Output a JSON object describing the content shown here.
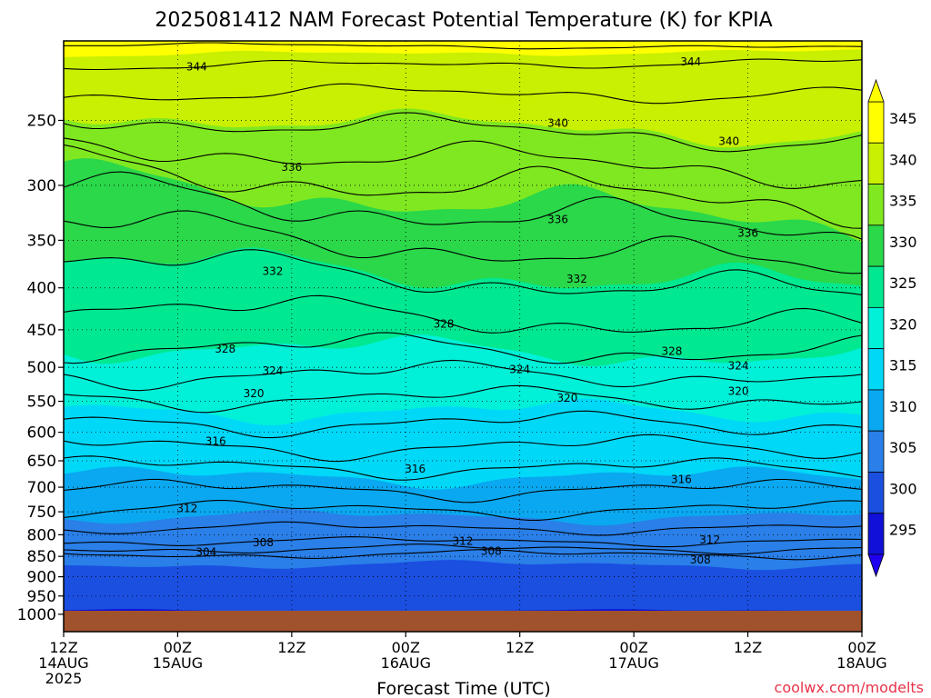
{
  "chart_data": {
    "type": "heatmap",
    "title": "2025081412 NAM Forecast Potential Temperature (K) for KPIA",
    "xlabel": "Forecast Time (UTC)",
    "ylabel": "",
    "credit": "coolwx.com/modelts",
    "y_scale": "log-pressure",
    "ylim": [
      1050,
      200
    ],
    "xlim": [
      0,
      84
    ],
    "grid": true,
    "y_ticks": [
      "250",
      "300",
      "350",
      "400",
      "450",
      "500",
      "550",
      "600",
      "650",
      "700",
      "750",
      "800",
      "850",
      "900",
      "950",
      "1000"
    ],
    "x_ticks": [
      {
        "hour": 0,
        "time": "12Z",
        "date": "14AUG",
        "year": "2025"
      },
      {
        "hour": 12,
        "time": "00Z",
        "date": "15AUG",
        "year": ""
      },
      {
        "hour": 24,
        "time": "12Z",
        "date": "",
        "year": ""
      },
      {
        "hour": 36,
        "time": "00Z",
        "date": "16AUG",
        "year": ""
      },
      {
        "hour": 48,
        "time": "12Z",
        "date": "",
        "year": ""
      },
      {
        "hour": 60,
        "time": "00Z",
        "date": "17AUG",
        "year": ""
      },
      {
        "hour": 72,
        "time": "12Z",
        "date": "",
        "year": ""
      },
      {
        "hour": 84,
        "time": "00Z",
        "date": "18AUG",
        "year": ""
      }
    ],
    "colorbar": {
      "labels": [
        "345",
        "340",
        "335",
        "330",
        "325",
        "320",
        "315",
        "310",
        "305",
        "300",
        "295"
      ],
      "bins": [
        {
          "from": 295,
          "to": 300,
          "color": "#1010d8"
        },
        {
          "from": 300,
          "to": 305,
          "color": "#1a4fe0"
        },
        {
          "from": 305,
          "to": 310,
          "color": "#2a7fe8"
        },
        {
          "from": 310,
          "to": 315,
          "color": "#0aa8f0"
        },
        {
          "from": 315,
          "to": 320,
          "color": "#00d8f8"
        },
        {
          "from": 320,
          "to": 325,
          "color": "#00f0d8"
        },
        {
          "from": 325,
          "to": 330,
          "color": "#00e890"
        },
        {
          "from": 330,
          "to": 335,
          "color": "#2ad84a"
        },
        {
          "from": 335,
          "to": 340,
          "color": "#80e820"
        },
        {
          "from": 340,
          "to": 345,
          "color": "#c8f000"
        },
        {
          "from": 345,
          "to": 350,
          "color": "#ffff00"
        }
      ],
      "below_color": "#2000f0",
      "above_color": "#ffff00"
    },
    "ground_color": "#a0522d",
    "contour_labels": [
      {
        "value": "344",
        "hour": 14,
        "pressure": 215
      },
      {
        "value": "344",
        "hour": 66,
        "pressure": 212
      },
      {
        "value": "340",
        "hour": 52,
        "pressure": 252
      },
      {
        "value": "340",
        "hour": 70,
        "pressure": 265
      },
      {
        "value": "336",
        "hour": 24,
        "pressure": 285
      },
      {
        "value": "336",
        "hour": 52,
        "pressure": 330
      },
      {
        "value": "336",
        "hour": 72,
        "pressure": 343
      },
      {
        "value": "332",
        "hour": 22,
        "pressure": 382
      },
      {
        "value": "332",
        "hour": 54,
        "pressure": 390
      },
      {
        "value": "328",
        "hour": 40,
        "pressure": 443
      },
      {
        "value": "328",
        "hour": 17,
        "pressure": 475
      },
      {
        "value": "328",
        "hour": 64,
        "pressure": 478
      },
      {
        "value": "324",
        "hour": 22,
        "pressure": 505
      },
      {
        "value": "324",
        "hour": 48,
        "pressure": 503
      },
      {
        "value": "324",
        "hour": 71,
        "pressure": 498
      },
      {
        "value": "320",
        "hour": 20,
        "pressure": 538
      },
      {
        "value": "320",
        "hour": 53,
        "pressure": 545
      },
      {
        "value": "320",
        "hour": 71,
        "pressure": 535
      },
      {
        "value": "316",
        "hour": 16,
        "pressure": 615
      },
      {
        "value": "316",
        "hour": 37,
        "pressure": 665
      },
      {
        "value": "316",
        "hour": 65,
        "pressure": 685
      },
      {
        "value": "312",
        "hour": 13,
        "pressure": 743
      },
      {
        "value": "312",
        "hour": 42,
        "pressure": 815
      },
      {
        "value": "312",
        "hour": 68,
        "pressure": 812
      },
      {
        "value": "308",
        "hour": 21,
        "pressure": 818
      },
      {
        "value": "308",
        "hour": 45,
        "pressure": 838
      },
      {
        "value": "308",
        "hour": 67,
        "pressure": 858
      },
      {
        "value": "304",
        "hour": 15,
        "pressure": 840
      }
    ],
    "isentropes": [
      {
        "value": 346,
        "p_start": 202,
        "p_end": 204,
        "amp": 3
      },
      {
        "value": 344,
        "p_start": 215,
        "p_end": 212,
        "amp": 6
      },
      {
        "value": 342,
        "p_start": 232,
        "p_end": 232,
        "amp": 12
      },
      {
        "value": 340,
        "p_start": 248,
        "p_end": 265,
        "amp": 18
      },
      {
        "value": 338,
        "p_start": 268,
        "p_end": 290,
        "amp": 22
      },
      {
        "value": 336,
        "p_start": 285,
        "p_end": 318,
        "amp": 28
      },
      {
        "value": 334,
        "p_start": 305,
        "p_end": 345,
        "amp": 28
      },
      {
        "value": 332,
        "p_start": 335,
        "p_end": 380,
        "amp": 26
      },
      {
        "value": 330,
        "p_start": 370,
        "p_end": 410,
        "amp": 24
      },
      {
        "value": 328,
        "p_start": 420,
        "p_end": 450,
        "amp": 22
      },
      {
        "value": 326,
        "p_start": 470,
        "p_end": 480,
        "amp": 20
      },
      {
        "value": 324,
        "p_start": 510,
        "p_end": 510,
        "amp": 18
      },
      {
        "value": 322,
        "p_start": 545,
        "p_end": 545,
        "amp": 16
      },
      {
        "value": 320,
        "p_start": 585,
        "p_end": 585,
        "amp": 16
      },
      {
        "value": 318,
        "p_start": 625,
        "p_end": 625,
        "amp": 16
      },
      {
        "value": 316,
        "p_start": 660,
        "p_end": 665,
        "amp": 14
      },
      {
        "value": 314,
        "p_start": 705,
        "p_end": 705,
        "amp": 14
      },
      {
        "value": 312,
        "p_start": 745,
        "p_end": 745,
        "amp": 12
      },
      {
        "value": 310,
        "p_start": 785,
        "p_end": 785,
        "amp": 8
      },
      {
        "value": 308,
        "p_start": 815,
        "p_end": 815,
        "amp": 6
      },
      {
        "value": 306,
        "p_start": 832,
        "p_end": 832,
        "amp": 6
      },
      {
        "value": 304,
        "p_start": 845,
        "p_end": 845,
        "amp": 6
      }
    ],
    "fill_boundaries": [
      {
        "value": 345,
        "p_start": 208,
        "p_end": 206,
        "amp": 4
      },
      {
        "value": 340,
        "p_start": 245,
        "p_end": 262,
        "amp": 18
      },
      {
        "value": 335,
        "p_start": 295,
        "p_end": 335,
        "amp": 28
      },
      {
        "value": 330,
        "p_start": 370,
        "p_end": 400,
        "amp": 24
      },
      {
        "value": 325,
        "p_start": 470,
        "p_end": 485,
        "amp": 20
      },
      {
        "value": 320,
        "p_start": 565,
        "p_end": 565,
        "amp": 16
      },
      {
        "value": 315,
        "p_start": 680,
        "p_end": 680,
        "amp": 14
      },
      {
        "value": 310,
        "p_start": 760,
        "p_end": 760,
        "amp": 10
      },
      {
        "value": 305,
        "p_start": 870,
        "p_end": 870,
        "amp": 6
      },
      {
        "value": 300,
        "p_start": 990,
        "p_end": 990,
        "amp": 2
      }
    ]
  }
}
